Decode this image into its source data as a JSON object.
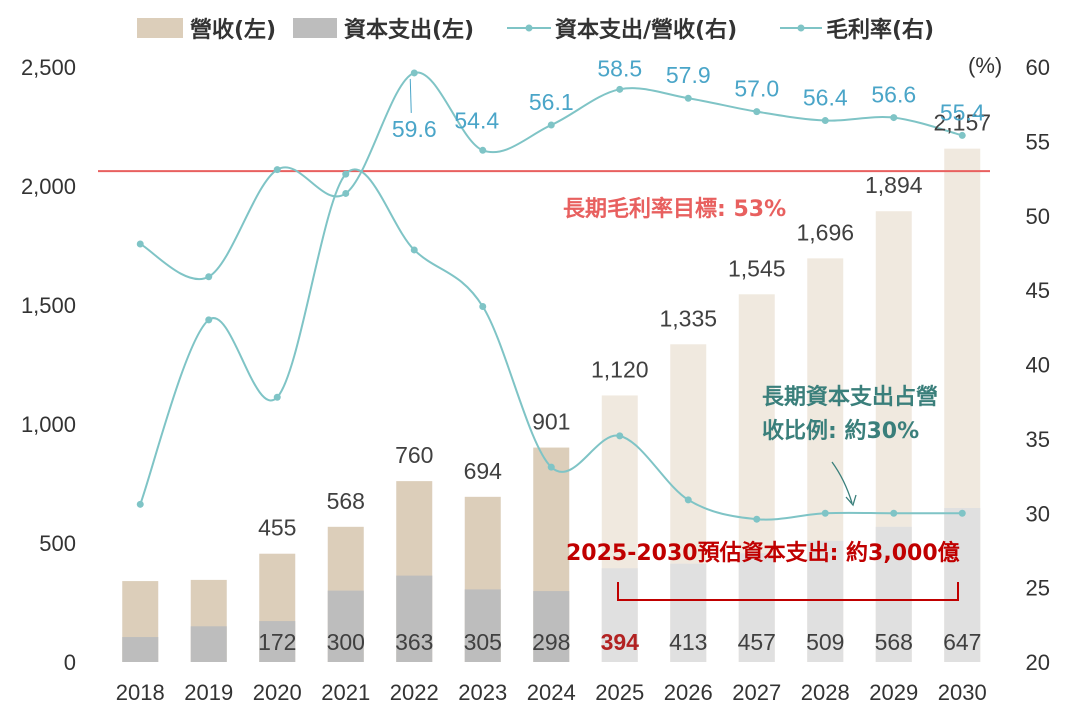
{
  "chart_data": {
    "type": "bar",
    "categories": [
      "2018",
      "2019",
      "2020",
      "2021",
      "2022",
      "2023",
      "2024",
      "2025",
      "2026",
      "2027",
      "2028",
      "2029",
      "2030"
    ],
    "series": [
      {
        "name": "營收(左)",
        "kind": "bar",
        "axis": "left",
        "values": [
          340,
          345,
          455,
          568,
          760,
          694,
          901,
          1120,
          1335,
          1545,
          1696,
          1894,
          2157
        ],
        "labels": [
          "",
          "",
          "455",
          "568",
          "760",
          "694",
          "901",
          "1,120",
          "1,335",
          "1,545",
          "1,696",
          "1,894",
          "2,157"
        ]
      },
      {
        "name": "資本支出(左)",
        "kind": "bar",
        "axis": "left",
        "values": [
          105,
          150,
          172,
          300,
          363,
          305,
          298,
          394,
          413,
          457,
          509,
          568,
          647
        ],
        "labels": [
          "",
          "",
          "172",
          "300",
          "363",
          "305",
          "298",
          "394",
          "413",
          "457",
          "509",
          "568",
          "647"
        ]
      },
      {
        "name": "資本支出/營收(右)",
        "kind": "line",
        "axis": "right",
        "values": [
          30.6,
          43.0,
          37.8,
          52.8,
          47.7,
          43.9,
          33.1,
          35.2,
          30.9,
          29.6,
          30.0,
          30.0,
          30.0
        ],
        "labels": []
      },
      {
        "name": "毛利率(右)",
        "kind": "line",
        "axis": "right",
        "values": [
          48.1,
          45.9,
          53.1,
          51.5,
          59.6,
          54.4,
          56.1,
          58.5,
          57.9,
          57.0,
          56.4,
          56.6,
          55.4
        ],
        "labels": [
          "",
          "",
          "",
          "",
          "59.6",
          "54.4",
          "56.1",
          "58.5",
          "57.9",
          "57.0",
          "56.4",
          "56.6",
          "55.4"
        ]
      }
    ],
    "y_left": {
      "min": 0,
      "max": 2500,
      "ticks": [
        "0",
        "500",
        "1,000",
        "1,500",
        "2,000",
        "2,500"
      ]
    },
    "y_right": {
      "min": 20,
      "max": 60,
      "unit": "(%)",
      "ticks": [
        "20",
        "25",
        "30",
        "35",
        "40",
        "45",
        "50",
        "55",
        "60"
      ]
    },
    "reference_line": {
      "axis": "right",
      "value": 53,
      "label": "長期毛利率目標: 53%",
      "color": "#e8605f"
    },
    "annotations": {
      "capex_ratio_line1": "長期資本支出占營",
      "capex_ratio_line2": "收比例: 約30%",
      "capex_total": "2025-2030預估資本支出: 約3,000億"
    },
    "legend_position": "top",
    "grid": false,
    "colors": {
      "revenue": "#dcceba",
      "revenue_forecast": "#f0e9df",
      "capex": "#bdbdbd",
      "capex_forecast": "#e0e0e0",
      "capex_ratio_line": "#7fc4c6",
      "gross_margin_line": "#7fc4c6",
      "gross_margin_label": "#4aa5c8",
      "capex_ratio_annotation": "#3a7f7b",
      "capex_total_annotation": "#c00000",
      "highlight_label": "#b22222",
      "axis_text": "#333333"
    }
  }
}
